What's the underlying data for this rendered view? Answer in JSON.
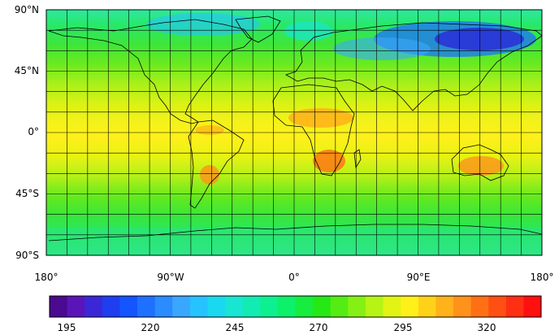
{
  "map": {
    "lat_labels": [
      "90°N",
      "45°N",
      "0°",
      "45°S",
      "90°S"
    ],
    "lon_labels": [
      "180°",
      "90°W",
      "0°",
      "90°E",
      "180°"
    ],
    "grid_interval_degrees": 15,
    "projection": "cylindrical-equidistant"
  },
  "colorbar": {
    "tick_labels": [
      "195",
      "220",
      "245",
      "270",
      "295",
      "320"
    ],
    "colors": [
      "#4b0a8f",
      "#5a15b8",
      "#3a28d8",
      "#1f3ef0",
      "#1455ff",
      "#1e70ff",
      "#2a8cff",
      "#3aa7ff",
      "#25c3ff",
      "#1ad8f0",
      "#18e6d2",
      "#12ecb3",
      "#0df08f",
      "#0cf06a",
      "#16ed3e",
      "#25e814",
      "#55ec14",
      "#85f014",
      "#b5f414",
      "#e1f414",
      "#fff01a",
      "#ffd21a",
      "#ffb21a",
      "#ff921a",
      "#ff7014",
      "#ff5014",
      "#ff2f14",
      "#ff1010"
    ]
  },
  "field": {
    "background_color": "#4ee32a",
    "continent_outline_color": "#000000"
  }
}
